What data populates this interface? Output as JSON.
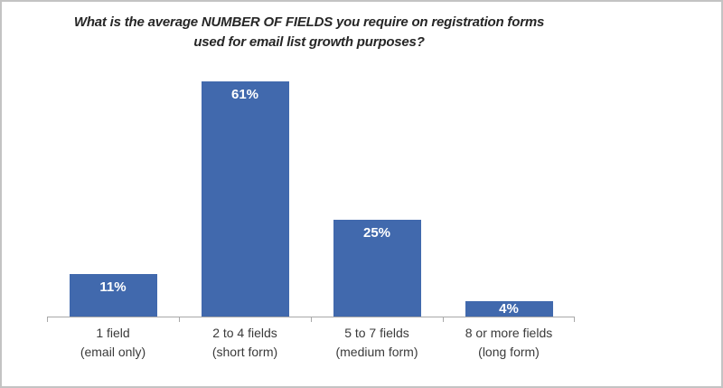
{
  "frame": {
    "background": "#ffffff",
    "border_color": "#c3c3c3"
  },
  "chart_data": {
    "type": "bar",
    "title_line1": "What is the average NUMBER OF FIELDS you require on registration forms",
    "title_line2": "used for email list growth purposes?",
    "categories": [
      {
        "line1": "1 field",
        "line2": "(email only)"
      },
      {
        "line1": "2 to 4 fields",
        "line2": "(short form)"
      },
      {
        "line1": "5 to 7 fields",
        "line2": "(medium form)"
      },
      {
        "line1": "8 or more fields",
        "line2": "(long form)"
      }
    ],
    "values": [
      11,
      61,
      25,
      4
    ],
    "data_labels": [
      "11%",
      "61%",
      "25%",
      "4%"
    ],
    "bar_color": "#4169ad",
    "data_label_color": "#ffffff",
    "axis_color": "#a8a8a8",
    "title_color": "#262626",
    "category_label_color": "#3a3a3a",
    "ylim": [
      0,
      68
    ],
    "grid": false,
    "legend": false,
    "y_axis_visible": false
  }
}
